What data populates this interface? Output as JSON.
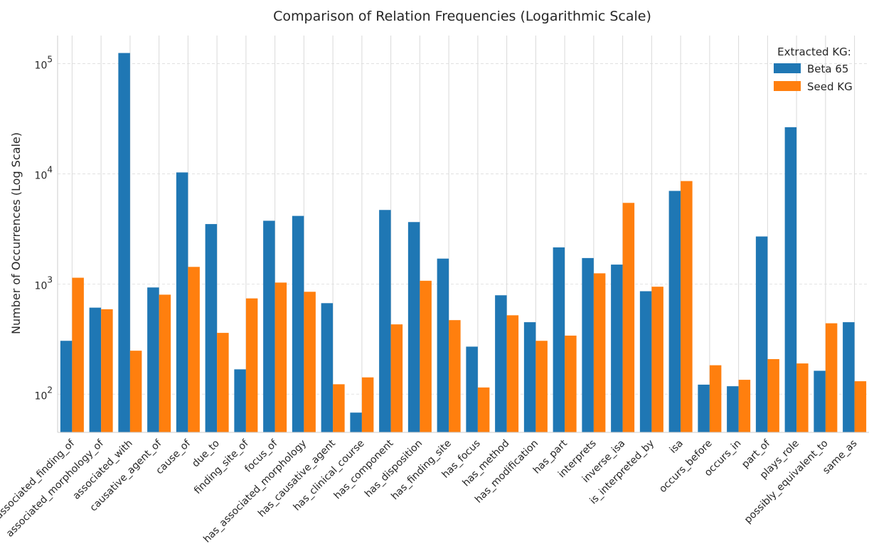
{
  "chart_data": {
    "type": "bar",
    "title": "Comparison of Relation Frequencies (Logarithmic Scale)",
    "xlabel": "",
    "ylabel": "Number of Occurrences (Log Scale)",
    "yscale": "log",
    "ylim": [
      45,
      180000
    ],
    "yticks": [
      {
        "value": 100,
        "base": "10",
        "exp": "2"
      },
      {
        "value": 1000,
        "base": "10",
        "exp": "3"
      },
      {
        "value": 10000,
        "base": "10",
        "exp": "4"
      },
      {
        "value": 100000,
        "base": "10",
        "exp": "5"
      }
    ],
    "grid": true,
    "legend": {
      "title": "Extracted KG:",
      "placement": "top-right"
    },
    "categories": [
      "associated_finding_of",
      "associated_morphology_of",
      "associated_with",
      "causative_agent_of",
      "cause_of",
      "due_to",
      "finding_site_of",
      "focus_of",
      "has_associated_morphology",
      "has_causative_agent",
      "has_clinical_course",
      "has_component",
      "has_disposition",
      "has_finding_site",
      "has_focus",
      "has_method",
      "has_modification",
      "has_part",
      "interprets",
      "inverse_isa",
      "is_interpreted_by",
      "isa",
      "occurs_before",
      "occurs_in",
      "part_of",
      "plays_role",
      "possibly_equivalent_to",
      "same_as"
    ],
    "series": [
      {
        "name": "Beta 65",
        "color": "#1f77b4",
        "values": [
          305,
          610,
          125000,
          930,
          10300,
          3500,
          168,
          3750,
          4150,
          670,
          68,
          4700,
          3650,
          1700,
          270,
          790,
          450,
          2150,
          1720,
          1500,
          860,
          7000,
          122,
          118,
          2700,
          26500,
          163,
          450
        ]
      },
      {
        "name": "Seed KG",
        "color": "#ff7f0e",
        "values": [
          1140,
          590,
          248,
          800,
          1430,
          360,
          740,
          1030,
          850,
          123,
          142,
          430,
          1070,
          470,
          115,
          520,
          305,
          340,
          1250,
          5450,
          945,
          8600,
          183,
          135,
          208,
          190,
          440,
          131
        ]
      }
    ]
  }
}
